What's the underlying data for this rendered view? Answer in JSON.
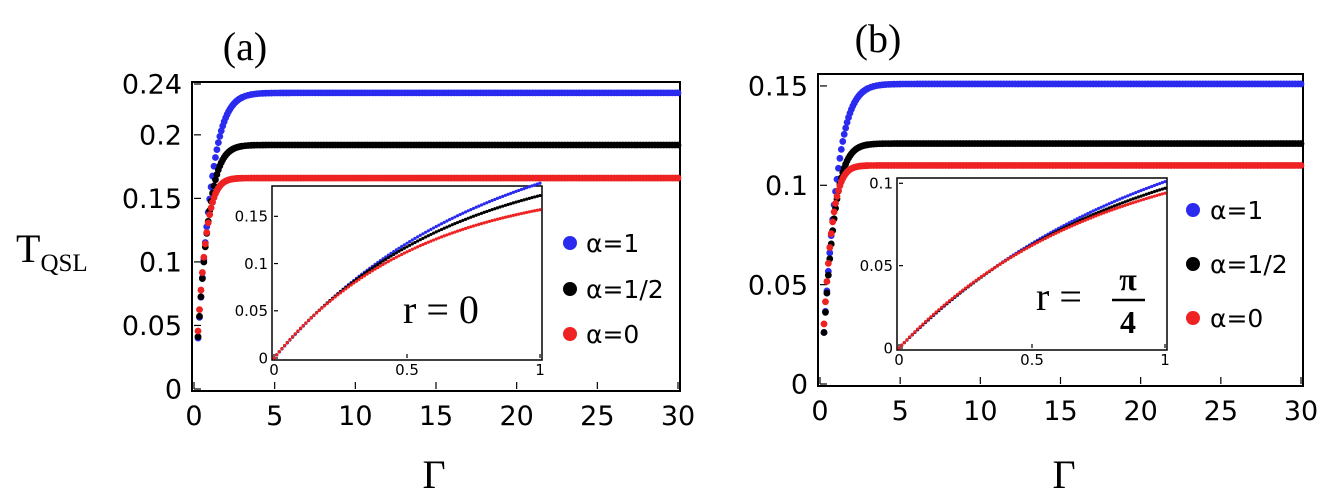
{
  "colors": {
    "a1": "#2b2bf0",
    "a_half": "#000000",
    "a0": "#ee2222"
  },
  "chart_data": [
    {
      "type": "scatter",
      "panel_label": "(a)",
      "ylabel": "T",
      "ylabel_sub": "QSL",
      "xlabel": "Γ",
      "xlim": [
        0,
        30
      ],
      "ylim": [
        0,
        0.24
      ],
      "xticks": [
        0,
        5,
        10,
        15,
        20,
        25,
        30
      ],
      "xtick_labels": [
        "0",
        "5",
        "10",
        "15",
        "20",
        "25",
        "30"
      ],
      "yticks": [
        0,
        0.05,
        0.1,
        0.15,
        0.2,
        0.24
      ],
      "ytick_labels": [
        "0",
        "0.05",
        "0.1",
        "0.15",
        "0.2",
        "0.24"
      ],
      "series": [
        {
          "name": "α=1",
          "color": "#2b2bf0",
          "plateau": 0.233,
          "tau": 0.95
        },
        {
          "name": "α=1/2",
          "color": "#000000",
          "plateau": 0.192,
          "tau": 0.78
        },
        {
          "name": "α=0",
          "color": "#ee2222",
          "plateau": 0.166,
          "tau": 0.62
        }
      ],
      "legend": [
        "α=1",
        "α=1/2",
        "α=0"
      ],
      "inset": {
        "annotation": "r = 0",
        "xlim": [
          0,
          1
        ],
        "ylim": [
          0,
          0.18
        ],
        "xticks": [
          0,
          0.5,
          1
        ],
        "xtick_labels": [
          "0",
          "0.5",
          "1"
        ],
        "yticks": [
          0,
          0.05,
          0.1,
          0.15
        ],
        "ytick_labels": [
          "0",
          "0.05",
          "0.1",
          "0.15"
        ],
        "series": [
          {
            "name": "α=1",
            "color": "#2b2bf0",
            "end_value": 0.185,
            "shape": 1.3
          },
          {
            "name": "α=1/2",
            "color": "#000000",
            "end_value": 0.172,
            "shape": 1.55
          },
          {
            "name": "α=0",
            "color": "#ee2222",
            "end_value": 0.157,
            "shape": 1.85
          }
        ]
      }
    },
    {
      "type": "scatter",
      "panel_label": "(b)",
      "xlabel": "Γ",
      "xlim": [
        0,
        30
      ],
      "ylim": [
        0,
        0.155
      ],
      "xticks": [
        0,
        5,
        10,
        15,
        20,
        25,
        30
      ],
      "xtick_labels": [
        "0",
        "5",
        "10",
        "15",
        "20",
        "25",
        "30"
      ],
      "yticks": [
        0,
        0.05,
        0.1,
        0.15
      ],
      "ytick_labels": [
        "0",
        "0.05",
        "0.1",
        "0.15"
      ],
      "series": [
        {
          "name": "α=1",
          "color": "#2b2bf0",
          "plateau": 0.151,
          "tau": 0.95
        },
        {
          "name": "α=1/2",
          "color": "#000000",
          "plateau": 0.121,
          "tau": 0.78
        },
        {
          "name": "α=0",
          "color": "#ee2222",
          "plateau": 0.11,
          "tau": 0.62
        }
      ],
      "legend": [
        "α=1",
        "α=1/2",
        "α=0"
      ],
      "inset": {
        "annotation_lhs": "r =",
        "annotation_num": "π",
        "annotation_den": "4",
        "xlim": [
          0,
          1
        ],
        "ylim": [
          0,
          0.102
        ],
        "xticks": [
          0,
          0.5,
          1
        ],
        "xtick_labels": [
          "0",
          "0.5",
          "1"
        ],
        "yticks": [
          0,
          0.05,
          0.1
        ],
        "ytick_labels": [
          "0",
          "0.05",
          "0.1"
        ],
        "series": [
          {
            "name": "α=1",
            "color": "#2b2bf0",
            "end_value": 0.101,
            "shape": 1.05
          },
          {
            "name": "α=1/2",
            "color": "#000000",
            "end_value": 0.097,
            "shape": 1.2
          },
          {
            "name": "α=0",
            "color": "#ee2222",
            "end_value": 0.094,
            "shape": 1.35
          }
        ]
      }
    }
  ]
}
